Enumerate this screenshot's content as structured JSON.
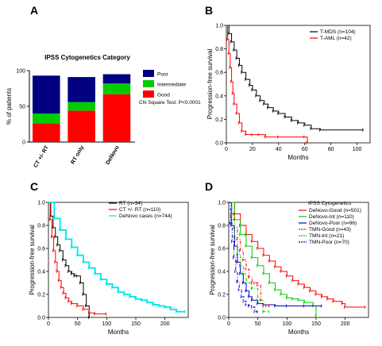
{
  "chart_data": [
    {
      "panel": "A",
      "type": "bar",
      "title": "IPSS Cytogenetics Category",
      "ylabel": "% of patients",
      "ylim": [
        0,
        100
      ],
      "yticks": [
        0,
        50,
        100
      ],
      "categories": [
        "CT +/- RT",
        "RT only",
        "DeNovo"
      ],
      "stacked": true,
      "series": [
        {
          "name": "Good",
          "color": "#ff0000",
          "values": [
            26,
            44,
            67
          ]
        },
        {
          "name": "Intermediate",
          "color": "#00cc00",
          "values": [
            14,
            12,
            15
          ]
        },
        {
          "name": "Poor",
          "color": "#000080",
          "values": [
            53,
            35,
            13
          ]
        }
      ],
      "legend_order": [
        "Poor",
        "Intermediate",
        "Good"
      ],
      "annotation": "Chi Square Test: P<0.0001",
      "legend_position": "right"
    },
    {
      "panel": "B",
      "type": "line",
      "step": true,
      "xlabel": "Months",
      "ylabel": "Progression-free survival",
      "xlim": [
        0,
        110
      ],
      "ylim": [
        0,
        1.0
      ],
      "xticks": [
        0,
        20,
        40,
        60,
        80,
        100
      ],
      "yticks": [
        0.0,
        0.2,
        0.4,
        0.6,
        0.8,
        1.0
      ],
      "legend_position": "top-right",
      "series": [
        {
          "name": "T-MDS (n=104)",
          "color": "#000000",
          "x": [
            0,
            2,
            4,
            6,
            8,
            10,
            12,
            15,
            18,
            20,
            23,
            26,
            29,
            32,
            36,
            40,
            45,
            50,
            55,
            60,
            65,
            72,
            105
          ],
          "y": [
            1.0,
            0.93,
            0.86,
            0.79,
            0.72,
            0.66,
            0.6,
            0.54,
            0.49,
            0.45,
            0.4,
            0.36,
            0.33,
            0.3,
            0.27,
            0.25,
            0.22,
            0.19,
            0.17,
            0.15,
            0.12,
            0.11,
            0.11
          ]
        },
        {
          "name": "T-AML (n=42)",
          "color": "#ff0000",
          "x": [
            0,
            1,
            2,
            3,
            4,
            5,
            6,
            8,
            10,
            12,
            15,
            20,
            25,
            30,
            40,
            60,
            62
          ],
          "y": [
            1.0,
            0.88,
            0.76,
            0.64,
            0.52,
            0.42,
            0.33,
            0.25,
            0.17,
            0.1,
            0.07,
            0.07,
            0.07,
            0.05,
            0.05,
            0.05,
            0.0
          ]
        }
      ]
    },
    {
      "panel": "C",
      "type": "line",
      "step": true,
      "xlabel": "Months",
      "ylabel": "Progression-free survival",
      "xlim": [
        0,
        240
      ],
      "ylim": [
        0,
        1.0
      ],
      "xticks": [
        0,
        50,
        100,
        150,
        200
      ],
      "yticks": [
        0.0,
        0.2,
        0.4,
        0.6,
        0.8,
        1.0
      ],
      "legend_position": "top-right",
      "series": [
        {
          "name": "RT (n=34)",
          "color": "#000000",
          "x": [
            0,
            4,
            8,
            12,
            16,
            20,
            25,
            30,
            35,
            40,
            45,
            50,
            55,
            60,
            65,
            70
          ],
          "y": [
            1.0,
            0.88,
            0.78,
            0.7,
            0.63,
            0.58,
            0.5,
            0.45,
            0.4,
            0.38,
            0.36,
            0.36,
            0.3,
            0.2,
            0.1,
            0.0
          ]
        },
        {
          "name": "CT +/- RT (n=110)",
          "color": "#ff0000",
          "x": [
            0,
            3,
            6,
            9,
            12,
            15,
            18,
            22,
            26,
            30,
            35,
            40,
            50,
            60,
            70,
            80,
            100
          ],
          "y": [
            1.0,
            0.85,
            0.7,
            0.58,
            0.48,
            0.4,
            0.32,
            0.26,
            0.21,
            0.17,
            0.14,
            0.12,
            0.1,
            0.07,
            0.04,
            0.03,
            0.03
          ]
        },
        {
          "name": "DeNovo cases (n=744)",
          "color": "#00e5e5",
          "x": [
            0,
            10,
            20,
            30,
            40,
            50,
            60,
            70,
            80,
            90,
            100,
            110,
            120,
            130,
            140,
            150,
            160,
            170,
            180,
            190,
            200,
            210,
            220,
            235
          ],
          "y": [
            1.0,
            0.86,
            0.76,
            0.68,
            0.61,
            0.54,
            0.48,
            0.43,
            0.38,
            0.33,
            0.29,
            0.26,
            0.22,
            0.2,
            0.18,
            0.16,
            0.15,
            0.13,
            0.11,
            0.1,
            0.09,
            0.07,
            0.05,
            0.05
          ]
        }
      ]
    },
    {
      "panel": "D",
      "type": "line",
      "step": true,
      "xlabel": "Months",
      "ylabel": "Progression-free survival",
      "xlim": [
        0,
        240
      ],
      "ylim": [
        0,
        1.0
      ],
      "xticks": [
        0,
        50,
        100,
        150,
        200
      ],
      "yticks": [
        0.0,
        0.2,
        0.4,
        0.6,
        0.8,
        1.0
      ],
      "legend_title": "IPSS Cytogenetics",
      "legend_position": "top-right",
      "series": [
        {
          "name": "DeNovo-Good (n=501)",
          "color": "#ff0000",
          "dash": "",
          "x": [
            0,
            10,
            20,
            30,
            40,
            50,
            60,
            70,
            80,
            90,
            100,
            110,
            120,
            130,
            140,
            150,
            160,
            170,
            180,
            195,
            200,
            235
          ],
          "y": [
            1.0,
            0.9,
            0.8,
            0.72,
            0.66,
            0.6,
            0.54,
            0.49,
            0.44,
            0.4,
            0.36,
            0.32,
            0.29,
            0.26,
            0.23,
            0.2,
            0.18,
            0.16,
            0.14,
            0.12,
            0.09,
            0.09
          ]
        },
        {
          "name": "DeNovo-Int (n=110)",
          "color": "#00cc00",
          "dash": "",
          "x": [
            0,
            10,
            20,
            30,
            40,
            50,
            60,
            70,
            80,
            90,
            100,
            110,
            120,
            130,
            145,
            150
          ],
          "y": [
            1.0,
            0.85,
            0.72,
            0.62,
            0.52,
            0.45,
            0.38,
            0.3,
            0.24,
            0.2,
            0.17,
            0.16,
            0.15,
            0.13,
            0.1,
            0.01
          ]
        },
        {
          "name": "DeNovo-Poor (n=96)",
          "color": "#0000cc",
          "dash": "",
          "x": [
            0,
            5,
            10,
            15,
            20,
            25,
            30,
            35,
            40,
            50,
            60,
            80,
            100,
            130,
            160
          ],
          "y": [
            1.0,
            0.8,
            0.62,
            0.48,
            0.38,
            0.3,
            0.23,
            0.18,
            0.15,
            0.12,
            0.11,
            0.1,
            0.1,
            0.1,
            0.1
          ]
        },
        {
          "name": "TMN-Good (n=43)",
          "color": "#ff0000",
          "dash": "4,2,1,2",
          "x": [
            0,
            5,
            10,
            15,
            20,
            25,
            30,
            35,
            40,
            45,
            50,
            55,
            60,
            65,
            70
          ],
          "y": [
            1.0,
            0.9,
            0.78,
            0.68,
            0.58,
            0.5,
            0.42,
            0.35,
            0.3,
            0.3,
            0.28,
            0.15,
            0.1,
            0.1,
            0.1
          ]
        },
        {
          "name": "TMN-Int (n=21)",
          "color": "#00cc00",
          "dash": "4,2,1,2",
          "x": [
            0,
            5,
            10,
            15,
            20,
            25,
            30,
            40,
            50,
            60,
            70
          ],
          "y": [
            1.0,
            0.85,
            0.7,
            0.55,
            0.45,
            0.38,
            0.3,
            0.25,
            0.15,
            0.05,
            0.05
          ]
        },
        {
          "name": "TMN-Poor (n=70)",
          "color": "#0000cc",
          "dash": "4,2,1,2",
          "x": [
            0,
            3,
            6,
            9,
            12,
            15,
            18,
            22,
            26,
            30,
            35,
            40,
            45,
            50
          ],
          "y": [
            1.0,
            0.82,
            0.66,
            0.52,
            0.4,
            0.31,
            0.24,
            0.18,
            0.14,
            0.11,
            0.1,
            0.09,
            0.05,
            0.05
          ]
        }
      ]
    }
  ]
}
